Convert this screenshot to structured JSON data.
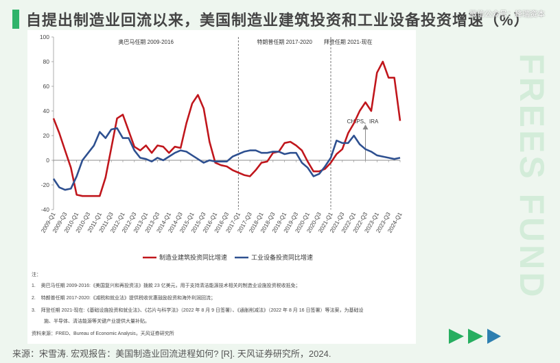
{
  "title": "自提出制造业回流以来，美国制造业建筑投资和工业设备投资增速（%）",
  "watermark": "微信公众号：蜂瑞资本",
  "brand_vertical": "FREES FUND",
  "source": "来源：宋雪涛. 宏观报告：美国制造业回流进程如何? [R]. 天风证券研究所，2024.",
  "notes": {
    "header": "注：",
    "items": [
      {
        "num": "1.",
        "text": "奥巴马任期 2009-2016:《美国复兴和再投资法》拨款 23 亿美元，用于支持清洁能源技术相关的制造业设施投资税收抵免；"
      },
      {
        "num": "2.",
        "text": "特朗普任期 2017-2020:《减税和就业法》提供税收优惠鼓励投资和海外利润回流；"
      },
      {
        "num": "3.",
        "text": "拜登任期 2021-现在:《基础设施投资和就业法》、《芯片与科学法》（2022 年 8 月 9 日签署）、《通胀削减法》（2022 年 8 月 16 日签署）等法案，为基础设"
      },
      {
        "num": "",
        "text": "施、半导体、清洁能源等关键产业提供大量补贴。"
      }
    ],
    "data_source": "资料来源：FRED、Bureau of Economic Analysis，天风证券研究所"
  },
  "chart_data": {
    "type": "line",
    "ylim": [
      -40,
      100
    ],
    "yticks": [
      -40,
      -20,
      0,
      20,
      40,
      60,
      80,
      100
    ],
    "x_labels": [
      "2009-Q1",
      "2009-Q3",
      "2010-Q1",
      "2010-Q3",
      "2011-Q1",
      "2011-Q3",
      "2012-Q1",
      "2012-Q3",
      "2013-Q1",
      "2013-Q3",
      "2014-Q1",
      "2014-Q3",
      "2015-Q1",
      "2015-Q3",
      "2016-Q1",
      "2016-Q3",
      "2017-Q1",
      "2017-Q3",
      "2018-Q1",
      "2018-Q3",
      "2019-Q1",
      "2019-Q3",
      "2020-Q1",
      "2020-Q3",
      "2021-Q1",
      "2021-Q3",
      "2022-Q1",
      "2022-Q3",
      "2023-Q1",
      "2023-Q3",
      "2024-Q1"
    ],
    "periods": [
      {
        "label": "奥巴马任期 2009-2016"
      },
      {
        "label": "特朗普任期 2017-2020"
      },
      {
        "label": "拜登任期 2021-现在"
      }
    ],
    "annotation": "CHIPS、IRA",
    "series": [
      {
        "name": "制造业建筑投资同比增速",
        "color": "#c0161c",
        "values": [
          34,
          22,
          8,
          -6,
          -28,
          -29,
          -29,
          -29,
          -29,
          -14,
          10,
          34,
          37,
          24,
          11,
          8,
          12,
          6,
          12,
          11,
          6,
          11,
          10,
          30,
          46,
          53,
          42,
          15,
          -2,
          -4,
          -5,
          -8,
          -10,
          -12,
          -13,
          -8,
          -2,
          -1,
          6,
          7,
          14,
          15,
          12,
          8,
          -1,
          -9,
          -9,
          -7,
          -2,
          5,
          9,
          22,
          30,
          40,
          47,
          40,
          71,
          80,
          67,
          67,
          32
        ]
      },
      {
        "name": "工业设备投资同比增速",
        "color": "#2e5090",
        "values": [
          -15,
          -22,
          -24,
          -23,
          -13,
          0,
          6,
          12,
          23,
          18,
          25,
          26,
          18,
          18,
          8,
          2,
          1,
          -1,
          2,
          0,
          3,
          6,
          8,
          7,
          4,
          1,
          -2,
          0,
          -1,
          -1,
          -1,
          3,
          5,
          7,
          8,
          8,
          6,
          6,
          7,
          7,
          5,
          6,
          6,
          -2,
          -6,
          -13,
          -11,
          -5,
          2,
          16,
          14,
          14,
          20,
          13,
          9,
          7,
          4,
          3,
          2,
          1,
          2
        ]
      }
    ]
  }
}
